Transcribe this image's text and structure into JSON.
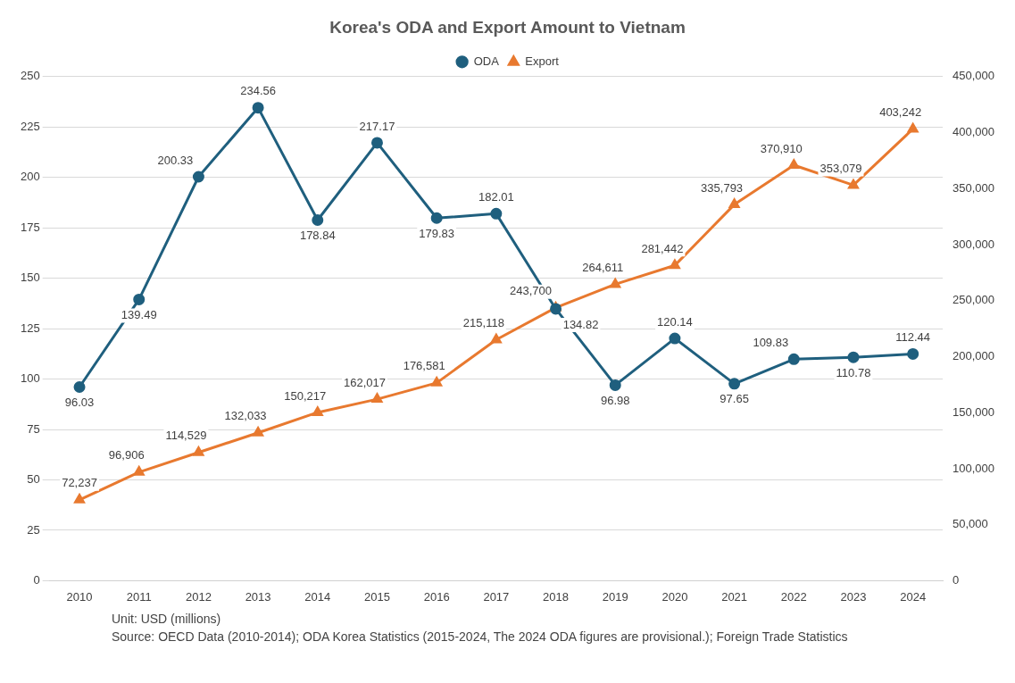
{
  "chart_data": {
    "type": "line",
    "title": "Korea's ODA and Export Amount to Vietnam",
    "categories": [
      "2010",
      "2011",
      "2012",
      "2013",
      "2014",
      "2015",
      "2016",
      "2017",
      "2018",
      "2019",
      "2020",
      "2021",
      "2022",
      "2023",
      "2024"
    ],
    "series": [
      {
        "name": "ODA",
        "color": "#1f5f7e",
        "values": [
          96.03,
          139.49,
          200.33,
          234.56,
          178.84,
          217.17,
          179.83,
          182.01,
          134.82,
          96.98,
          120.14,
          97.65,
          109.83,
          110.78,
          112.44
        ],
        "value_labels": [
          "96.03",
          "139.49",
          "200.33",
          "234.56",
          "178.84",
          "217.17",
          "179.83",
          "182.01",
          "134.82",
          "96.98",
          "120.14",
          "97.65",
          "109.83",
          "110.78",
          "112.44"
        ]
      },
      {
        "name": "Export",
        "color": "#e8792f",
        "type": "line",
        "axis": "y2",
        "marker": "triangle",
        "values": [
          72237,
          96906,
          114529,
          132033,
          150217,
          162017,
          176581,
          215118,
          243700,
          264611,
          281442,
          335793,
          370910,
          353079,
          403242
        ],
        "value_labels": [
          "72,237",
          "96,906",
          "114,529",
          "132,033",
          "150,217",
          "162,017",
          "176,581",
          "215,118",
          "243,700",
          "264,611",
          "281,442",
          "335,793",
          "370,910",
          "353,079",
          "403,242"
        ]
      }
    ],
    "ylim": [
      0,
      250
    ],
    "yticks": [
      0,
      25,
      50,
      75,
      100,
      125,
      150,
      175,
      200,
      225,
      250
    ],
    "y2lim": [
      0,
      450000
    ],
    "y2ticks": [
      0,
      {
        "value": 50000,
        "label": "50,000"
      },
      {
        "value": 100000,
        "label": "100,000"
      },
      {
        "value": 150000,
        "label": "150,000"
      },
      {
        "value": 200000,
        "label": "200,000"
      },
      {
        "value": 250000,
        "label": "250,000"
      },
      {
        "value": 300000,
        "label": "300,000"
      },
      {
        "value": 350000,
        "label": "350,000"
      },
      {
        "value": 400000,
        "label": "400,000"
      },
      {
        "value": 450000,
        "label": "450,000"
      }
    ],
    "grid": "y",
    "legend": "top",
    "marker": "circle",
    "line_style": "solid",
    "annotations": [
      "Unit: USD (millions)",
      "Source: OECD Data (2010-2014); ODA Korea Statistics (2015-2024, The 2024 ODA figures are provisional.); Foreign Trade Statistics"
    ]
  }
}
